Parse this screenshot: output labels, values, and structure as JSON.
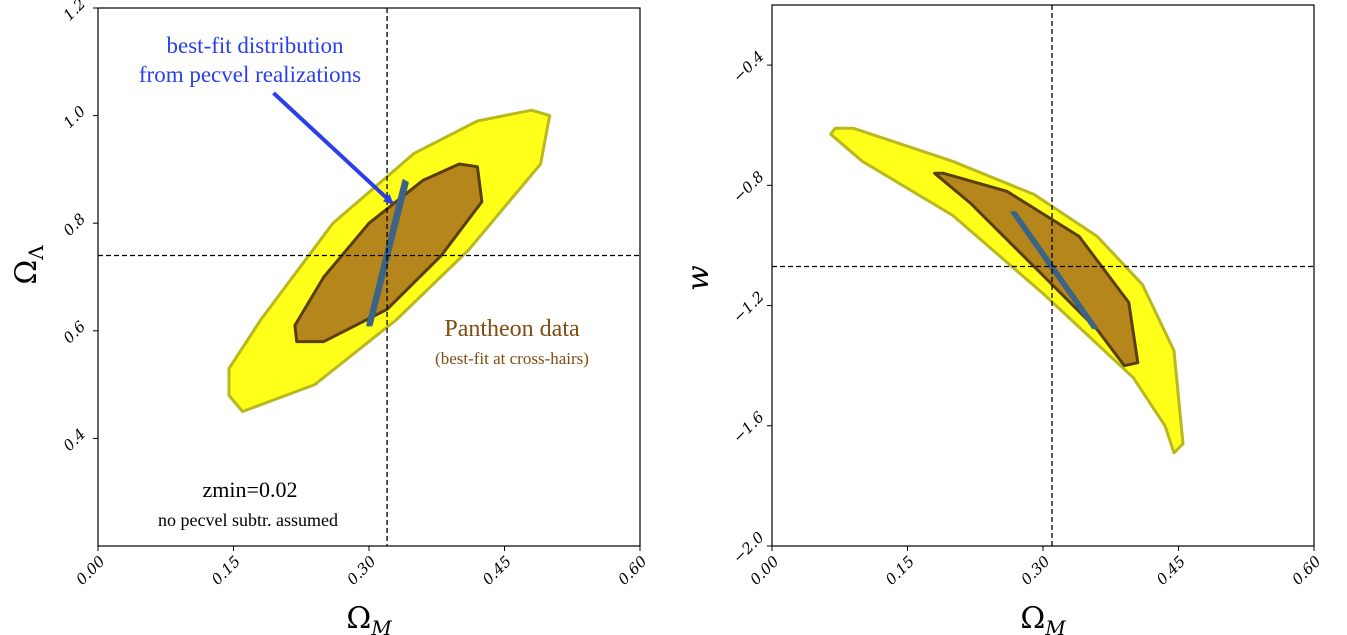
{
  "chart_data": [
    {
      "type": "contour",
      "panel": "left",
      "xlabel": "Ω_M",
      "ylabel": "Ω_Λ",
      "xlim": [
        0.0,
        0.6
      ],
      "ylim": [
        0.2,
        1.2
      ],
      "xticks": [
        "0.00",
        "0.15",
        "0.30",
        "0.45",
        "0.60"
      ],
      "yticks": [
        "0.4",
        "0.6",
        "0.8",
        "1.0",
        "1.2"
      ],
      "best_fit": {
        "x": 0.32,
        "y": 0.74
      },
      "contours": [
        {
          "level": "outer",
          "color": "#ffff1a",
          "edge": "#b8b81f",
          "points": [
            [
              0.16,
              0.45
            ],
            [
              0.24,
              0.5
            ],
            [
              0.33,
              0.62
            ],
            [
              0.41,
              0.75
            ],
            [
              0.49,
              0.91
            ],
            [
              0.5,
              1.0
            ],
            [
              0.48,
              1.01
            ],
            [
              0.42,
              0.99
            ],
            [
              0.35,
              0.93
            ],
            [
              0.26,
              0.8
            ],
            [
              0.18,
              0.62
            ],
            [
              0.145,
              0.53
            ],
            [
              0.145,
              0.48
            ]
          ]
        },
        {
          "level": "inner",
          "color": "#b5861b",
          "edge": "#5a3d10",
          "points": [
            [
              0.22,
              0.58
            ],
            [
              0.25,
              0.58
            ],
            [
              0.32,
              0.64
            ],
            [
              0.38,
              0.74
            ],
            [
              0.425,
              0.84
            ],
            [
              0.42,
              0.905
            ],
            [
              0.4,
              0.91
            ],
            [
              0.36,
              0.88
            ],
            [
              0.3,
              0.8
            ],
            [
              0.25,
              0.7
            ],
            [
              0.218,
              0.61
            ]
          ]
        },
        {
          "level": "pecvel",
          "color": "#3c6486",
          "edge": "#3c6486",
          "points": [
            [
              0.298,
              0.61
            ],
            [
              0.303,
              0.61
            ],
            [
              0.343,
              0.875
            ],
            [
              0.338,
              0.88
            ]
          ]
        }
      ],
      "annotations": [
        {
          "text": "best-fit distribution",
          "color": "#2a3fe8"
        },
        {
          "text": "from pecvel realizations",
          "color": "#2a3fe8"
        },
        {
          "text": "Pantheon data",
          "color": "#7f4d12"
        },
        {
          "text": "(best-fit at cross-hairs)",
          "color": "#7f4d12"
        },
        {
          "text": "zmin=0.02",
          "color": "#000000"
        },
        {
          "text": "no pecvel subtr. assumed",
          "color": "#000000"
        }
      ],
      "arrow": {
        "from": [
          0.15,
          1.05
        ],
        "to": [
          0.33,
          0.83
        ],
        "color": "#2a3fe8"
      }
    },
    {
      "type": "contour",
      "panel": "right",
      "xlabel": "Ω_M",
      "ylabel": "w",
      "xlim": [
        0.0,
        0.6
      ],
      "ylim": [
        -2.0,
        -0.2
      ],
      "xticks": [
        "0.00",
        "0.15",
        "0.30",
        "0.45",
        "0.60"
      ],
      "yticks": [
        "−2.0",
        "−1.6",
        "−1.2",
        "−0.8",
        "−0.4"
      ],
      "best_fit": {
        "x": 0.31,
        "y": -1.07
      },
      "contours": [
        {
          "level": "outer",
          "color": "#ffff1a",
          "edge": "#b8b81f",
          "points": [
            [
              0.07,
              -0.61
            ],
            [
              0.09,
              -0.61
            ],
            [
              0.2,
              -0.72
            ],
            [
              0.29,
              -0.83
            ],
            [
              0.36,
              -0.97
            ],
            [
              0.41,
              -1.13
            ],
            [
              0.445,
              -1.35
            ],
            [
              0.455,
              -1.66
            ],
            [
              0.445,
              -1.69
            ],
            [
              0.435,
              -1.6
            ],
            [
              0.4,
              -1.44
            ],
            [
              0.3,
              -1.16
            ],
            [
              0.2,
              -0.9
            ],
            [
              0.1,
              -0.72
            ],
            [
              0.065,
              -0.63
            ]
          ]
        },
        {
          "level": "inner",
          "color": "#b5861b",
          "edge": "#5a3d10",
          "points": [
            [
              0.18,
              -0.76
            ],
            [
              0.19,
              -0.76
            ],
            [
              0.26,
              -0.82
            ],
            [
              0.34,
              -0.97
            ],
            [
              0.395,
              -1.19
            ],
            [
              0.405,
              -1.39
            ],
            [
              0.39,
              -1.4
            ],
            [
              0.36,
              -1.28
            ],
            [
              0.3,
              -1.1
            ],
            [
              0.22,
              -0.86
            ]
          ]
        },
        {
          "level": "pecvel",
          "color": "#3c6486",
          "edge": "#3c6486",
          "points": [
            [
              0.265,
              -0.89
            ],
            [
              0.27,
              -0.89
            ],
            [
              0.36,
              -1.275
            ],
            [
              0.355,
              -1.275
            ]
          ]
        }
      ]
    }
  ]
}
